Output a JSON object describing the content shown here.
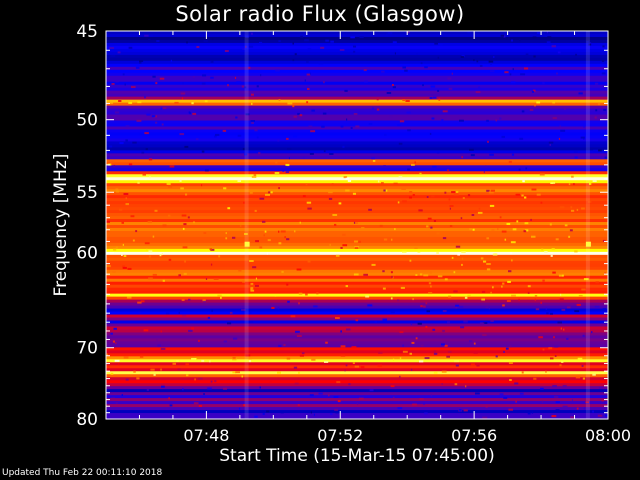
{
  "chart_data": {
    "type": "heatmap",
    "title": "Solar radio Flux (Glasgow)",
    "xlabel": "Start Time (15-Mar-15 07:45:00)",
    "ylabel": "Frequency [MHz]",
    "ylim": [
      45,
      80
    ],
    "x_ticks": [
      "07:48",
      "07:52",
      "07:56",
      "08:00"
    ],
    "x_tick_minutes": [
      48,
      52,
      56,
      60
    ],
    "x_range_minutes": [
      45,
      60
    ],
    "y_ticks": [
      45,
      50,
      55,
      60,
      70,
      80
    ],
    "y_scale": "reciprocal",
    "colormap": [
      "#000080",
      "#0000ff",
      "#ff0000",
      "#ffff00",
      "#ffffff"
    ],
    "bright_bands_mhz": [
      48.9,
      52.8,
      54.0,
      60.0,
      64.2,
      71.5,
      73.3
    ],
    "dark_bands_mhz": [
      45.4,
      46.4,
      51.8,
      65.7,
      67.0,
      75.7,
      78.8
    ]
  },
  "footer": "Updated Thu Feb 22 00:11:10 2018"
}
